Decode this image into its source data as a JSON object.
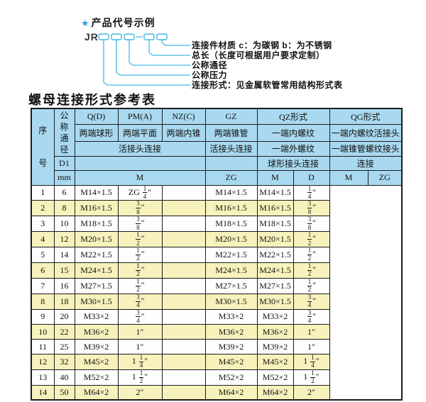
{
  "diagram": {
    "star_icon": "★",
    "heading": "产品代号示例",
    "code_prefix": "JR",
    "labels": [
      "连接件材质  c：为碳钢  b：为不锈钢",
      "总长（长度可根据用户要求定制）",
      "公称通径",
      "公称压力",
      "连接形式：见金属软管常用结构形式表"
    ]
  },
  "table": {
    "title": "螺母连接形式参考表",
    "header": {
      "serial": "序号",
      "dn": "公称通径",
      "d1": "D1",
      "mm": "mm",
      "groups": [
        "Q(D)",
        "PM(A)",
        "NZ(C)",
        "GZ",
        "QZ形式",
        "QG形式"
      ],
      "row2": [
        "两端球形",
        "两端平面",
        "两端内锥",
        "两端锥管",
        "一端内螺纹",
        "一端内螺纹活接头"
      ],
      "row3": [
        "活接头连接",
        "活接头连接",
        "一端外螺纹",
        "一端锥管螺纹接头"
      ],
      "row4": [
        "球形接头连接",
        "连接"
      ],
      "row5": [
        "M",
        "ZG",
        "M",
        "D",
        "M",
        "ZG"
      ]
    },
    "rows": [
      [
        "1",
        "6",
        "M14×1.5",
        "ZG 1/4″",
        "",
        "M14×1.5",
        "M14×1.5",
        "1/4″"
      ],
      [
        "2",
        "8",
        "M16×1.5",
        "3/8″",
        "",
        "M16×1.5",
        "M16×1.5",
        "3/8″"
      ],
      [
        "3",
        "10",
        "M18×1.5",
        "3/8″",
        "",
        "M18×1.5",
        "M18×1.5",
        "3/8″"
      ],
      [
        "4",
        "12",
        "M20×1.5",
        "1/2″",
        "",
        "M20×1.5",
        "M20×1.5",
        "1/2″"
      ],
      [
        "5",
        "14",
        "M22×1.5",
        "1/2″",
        "",
        "M22×1.5",
        "M22×1.5",
        "1/2″"
      ],
      [
        "6",
        "15",
        "M24×1.5",
        "1/2″",
        "",
        "M24×1.5",
        "M24×1.5",
        "1/2″"
      ],
      [
        "7",
        "16",
        "M27×1.5",
        "1/2″",
        "",
        "M27×1.5",
        "M27×1.5",
        "1/2″"
      ],
      [
        "8",
        "18",
        "M30×1.5",
        "3/4″",
        "",
        "M30×1.5",
        "M30×1.5",
        "3/4″"
      ],
      [
        "9",
        "20",
        "M33×2",
        "3/4″",
        "",
        "M33×2",
        "M33×2",
        "3/4″"
      ],
      [
        "10",
        "22",
        "M36×2",
        "1″",
        "",
        "M36×2",
        "M36×2",
        "1″"
      ],
      [
        "11",
        "25",
        "M39×2",
        "1″",
        "",
        "M39×2",
        "M39×2",
        "1″"
      ],
      [
        "12",
        "32",
        "M45×2",
        "1 1/4″",
        "",
        "M45×2",
        "M45×2",
        "1 1/4″"
      ],
      [
        "13",
        "40",
        "M52×2",
        "1 1/2″",
        "",
        "M52×2",
        "M52×2",
        "1 1/2″"
      ],
      [
        "14",
        "50",
        "M64×2",
        "2″",
        "",
        "M64×2",
        "M64×2",
        "2″"
      ]
    ]
  },
  "colors": {
    "header_bg": "#a9d9f0",
    "row_alt_bg": "#f7f2bc",
    "line_cyan": "#45b7e2",
    "star_blue": "#2b9fd8",
    "border": "#1c1c1c"
  }
}
